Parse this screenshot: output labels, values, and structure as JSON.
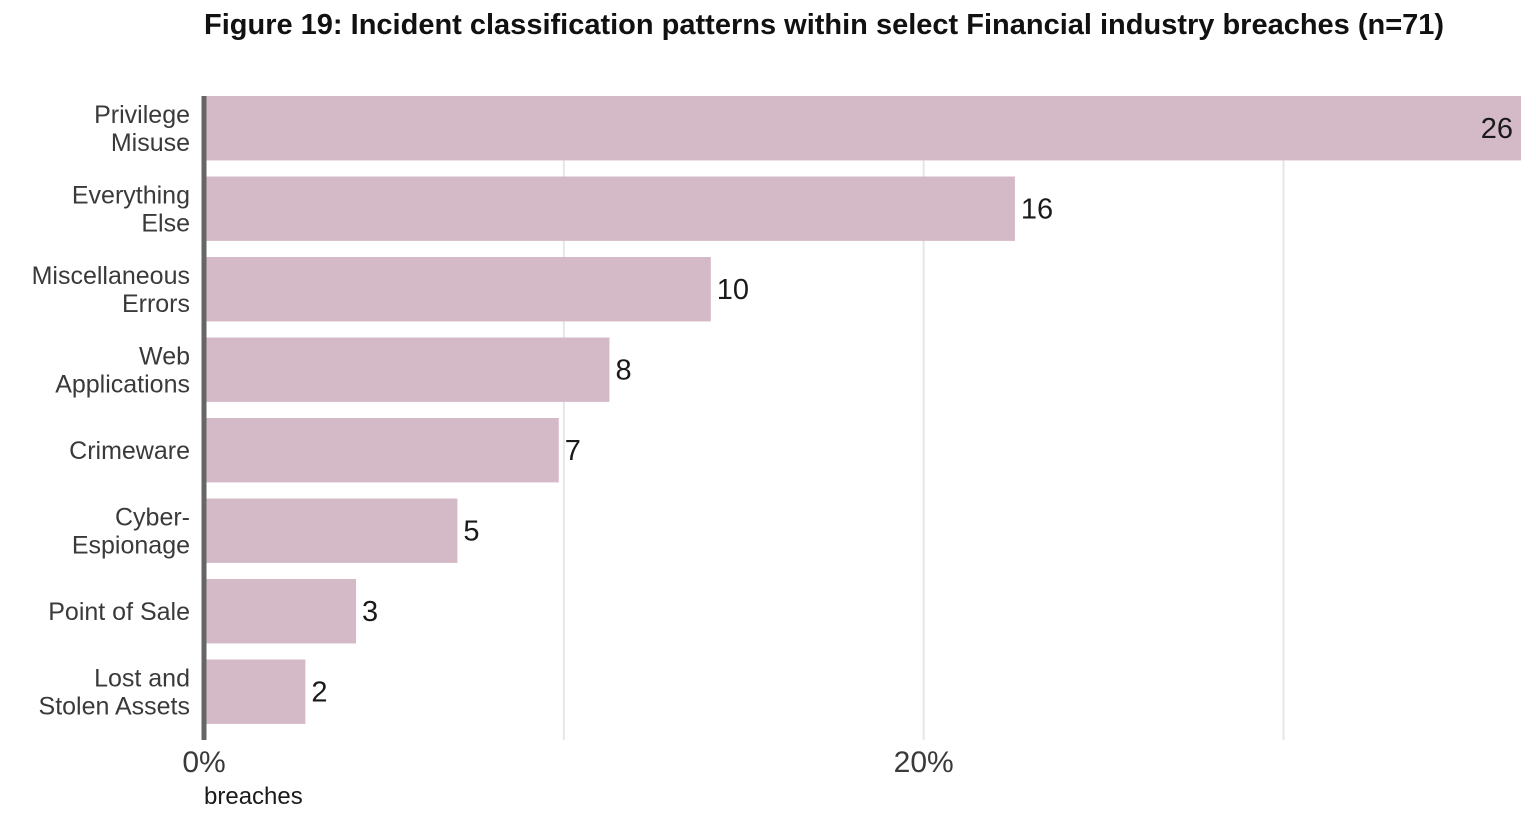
{
  "chart_data": {
    "type": "bar",
    "orientation": "horizontal",
    "title": "Figure 19: Incident classification patterns within select Financial industry breaches (n=71)",
    "xlabel": "breaches",
    "ylabel": "",
    "categories": [
      [
        "Privilege",
        "Misuse"
      ],
      [
        "Everything",
        "Else"
      ],
      [
        "Miscellaneous",
        "Errors"
      ],
      [
        "Web",
        "Applications"
      ],
      [
        "Crimeware"
      ],
      [
        "Cyber-",
        "Espionage"
      ],
      [
        "Point of Sale"
      ],
      [
        "Lost and",
        "Stolen Assets"
      ]
    ],
    "values": [
      26,
      16,
      10,
      8,
      7,
      5,
      3,
      2
    ],
    "n": 71,
    "xlim_percent": [
      0,
      36.6
    ],
    "x_ticks": [
      {
        "value": 0,
        "label": "0%"
      },
      {
        "value": 20,
        "label": "20%"
      }
    ],
    "gridlines_percent": [
      10,
      20,
      30
    ],
    "grid": true,
    "legend": "none",
    "bar_color": "#d4b9c7",
    "axis_color": "#666666",
    "grid_color": "#e6e6e6"
  }
}
